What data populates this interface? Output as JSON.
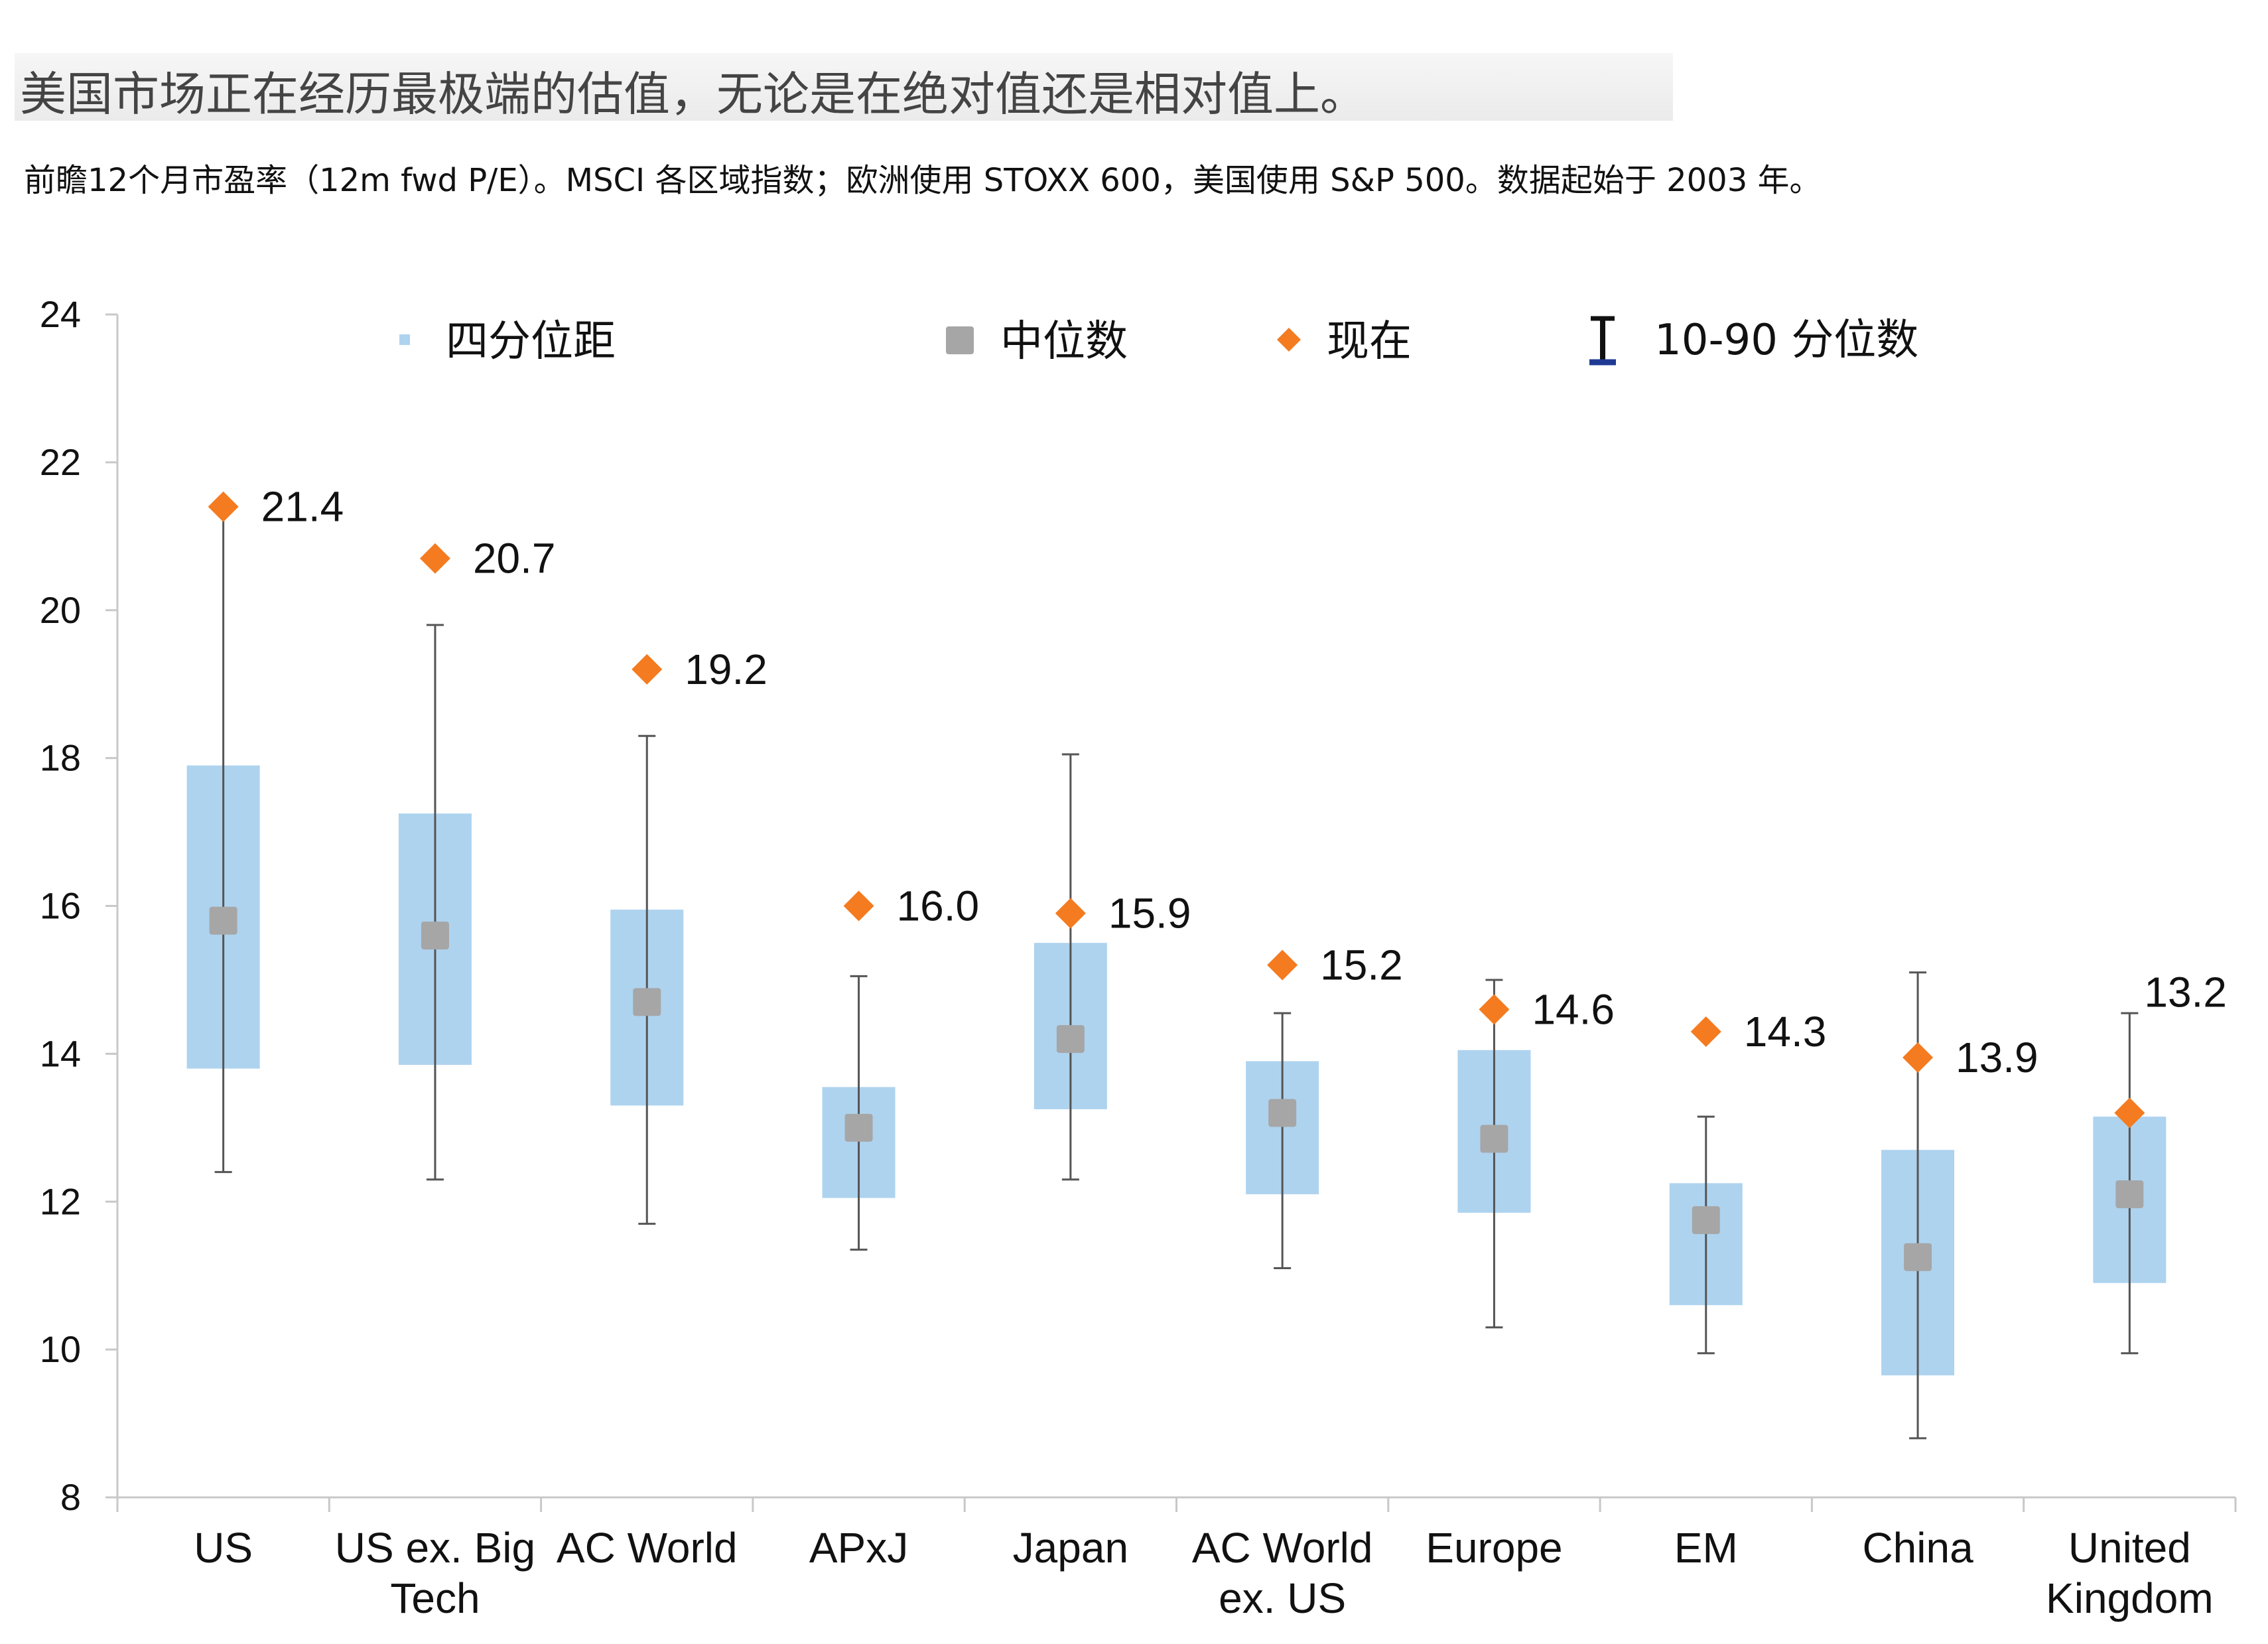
{
  "title": "美国市场正在经历最极端的估值，无论是在绝对值还是相对值上。",
  "subtitle": "前瞻12个月市盈率（12m fwd P/E）。MSCI 各区域指数；欧洲使用 STOXX 600，美国使用 S&P 500。数据起始于 2003 年。",
  "chart_data": {
    "type": "box",
    "y_ticks": [
      "24",
      "22",
      "20",
      "18",
      "16",
      "14",
      "12",
      "10",
      "8"
    ],
    "ylim": [
      8,
      24
    ],
    "legend": {
      "placement": "top",
      "entries": [
        {
          "key": "iqr",
          "label": "四分位距",
          "color": "#aed3ef"
        },
        {
          "key": "median",
          "label": "中位数",
          "color": "#a6a6a6"
        },
        {
          "key": "current",
          "label": "现在",
          "color": "#f47b20"
        },
        {
          "key": "range",
          "label": "10-90 分位数",
          "color": "#1f3a93"
        }
      ]
    },
    "categories": [
      {
        "label": [
          "US"
        ],
        "p10": 12.4,
        "q1": 13.8,
        "median": 15.8,
        "q3": 17.9,
        "p90": 21.4,
        "current": 21.4,
        "current_label": "21.4"
      },
      {
        "label": [
          "US ex. Big",
          "Tech"
        ],
        "p10": 12.3,
        "q1": 13.85,
        "median": 15.6,
        "q3": 17.25,
        "p90": 19.8,
        "current": 20.7,
        "current_label": "20.7"
      },
      {
        "label": [
          "AC World"
        ],
        "p10": 11.7,
        "q1": 13.3,
        "median": 14.7,
        "q3": 15.95,
        "p90": 18.3,
        "current": 19.2,
        "current_label": "19.2"
      },
      {
        "label": [
          "APxJ"
        ],
        "p10": 11.35,
        "q1": 12.05,
        "median": 13.0,
        "q3": 13.55,
        "p90": 15.05,
        "current": 16.0,
        "current_label": "16.0"
      },
      {
        "label": [
          "Japan"
        ],
        "p10": 12.3,
        "q1": 13.25,
        "median": 14.2,
        "q3": 15.5,
        "p90": 18.05,
        "current": 15.9,
        "current_label": "15.9"
      },
      {
        "label": [
          "AC World",
          "ex. US"
        ],
        "p10": 11.1,
        "q1": 12.1,
        "median": 13.2,
        "q3": 13.9,
        "p90": 14.55,
        "current": 15.2,
        "current_label": "15.2"
      },
      {
        "label": [
          "Europe"
        ],
        "p10": 10.3,
        "q1": 11.85,
        "median": 12.85,
        "q3": 14.05,
        "p90": 15.0,
        "current": 14.6,
        "current_label": "14.6"
      },
      {
        "label": [
          "EM"
        ],
        "p10": 9.95,
        "q1": 10.6,
        "median": 11.75,
        "q3": 12.25,
        "p90": 13.15,
        "current": 14.3,
        "current_label": "14.3"
      },
      {
        "label": [
          "China"
        ],
        "p10": 8.8,
        "q1": 9.65,
        "median": 11.25,
        "q3": 12.7,
        "p90": 15.1,
        "current": 13.95,
        "current_label": "13.9"
      },
      {
        "label": [
          "United",
          "Kingdom"
        ],
        "p10": 9.95,
        "q1": 10.9,
        "median": 12.1,
        "q3": 13.15,
        "p90": 14.55,
        "current": 13.2,
        "current_label": "13.2"
      }
    ]
  }
}
